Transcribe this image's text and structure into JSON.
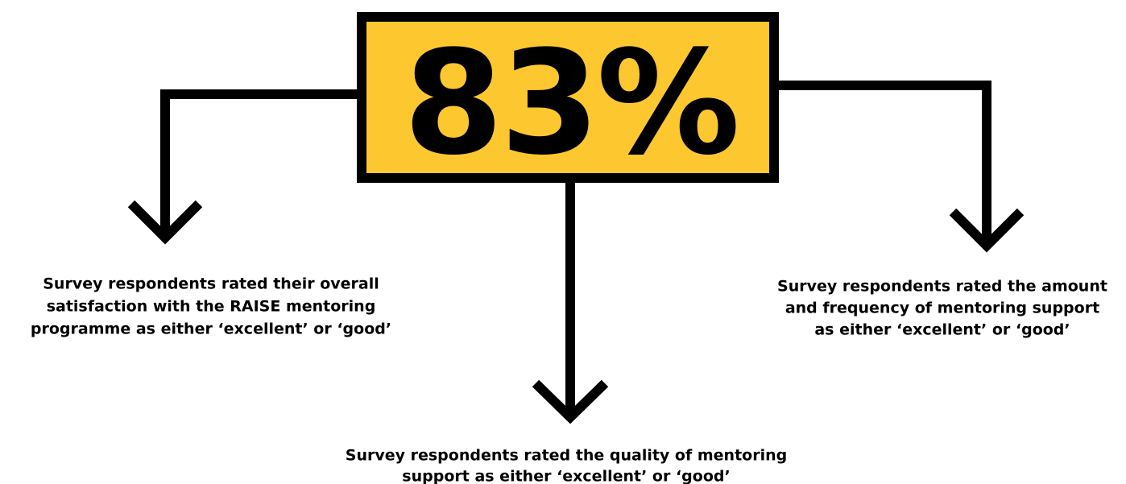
{
  "callout": {
    "value_text": "83%"
  },
  "captions": [
    {
      "lines": [
        "Survey respondents rated their overall",
        "satisfaction with the RAISE mentoring",
        "programme as either ‘excellent’ or ‘good’"
      ]
    },
    {
      "lines": [
        "Survey respondents rated the quality of mentoring",
        "support as either ‘excellent’ or ‘good’"
      ]
    },
    {
      "lines": [
        "Survey respondents rated the amount",
        "and frequency of mentoring support",
        "as either ‘excellent’ or ‘good’"
      ]
    }
  ]
}
